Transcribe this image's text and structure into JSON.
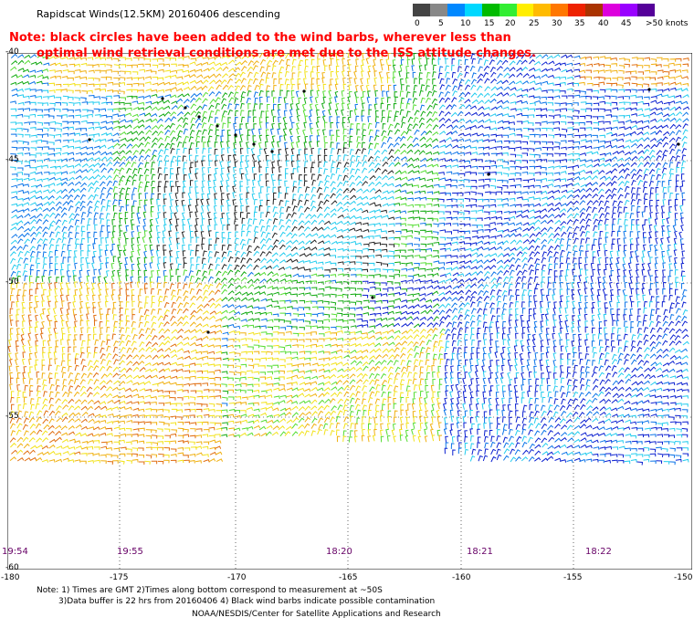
{
  "title": "Rapidscat Winds(12.5KM) 20160406 descending",
  "note_line1": "Note: black circles have been added to the wind barbs, wherever less than",
  "note_line2": "optimal wind retrieval conditions are met due to the ISS attitude changes.",
  "legend": {
    "colors": [
      "#444444",
      "#888888",
      "#0088ff",
      "#00d8ff",
      "#00bb00",
      "#33ee33",
      "#ffee00",
      "#ffbb00",
      "#ff7700",
      "#ee2200",
      "#aa3300",
      "#dd00dd",
      "#9900ff",
      "#550099"
    ],
    "labels": [
      "0",
      "5",
      "10",
      "15",
      "20",
      "25",
      "30",
      "35",
      "40",
      "45",
      ">50 knots"
    ]
  },
  "axes": {
    "lon_labels": [
      "-180",
      "-175",
      "-170",
      "-165",
      "-160",
      "-155",
      "-150"
    ],
    "lat_labels": [
      "-40",
      "-45",
      "-50",
      "-55",
      "-60"
    ]
  },
  "times": [
    "19:54",
    "19:55",
    "18:20",
    "18:21",
    "18:22"
  ],
  "footer": {
    "line1": "Note: 1) Times are GMT 2)Times along bottom correspond to measurement at ~50S",
    "line2": "3)Data buffer is 22 hrs from 20160406 4) Black wind barbs indicate possible contamination",
    "credit": "NOAA/NESDIS/Center for Satellite Applications and Research"
  }
}
